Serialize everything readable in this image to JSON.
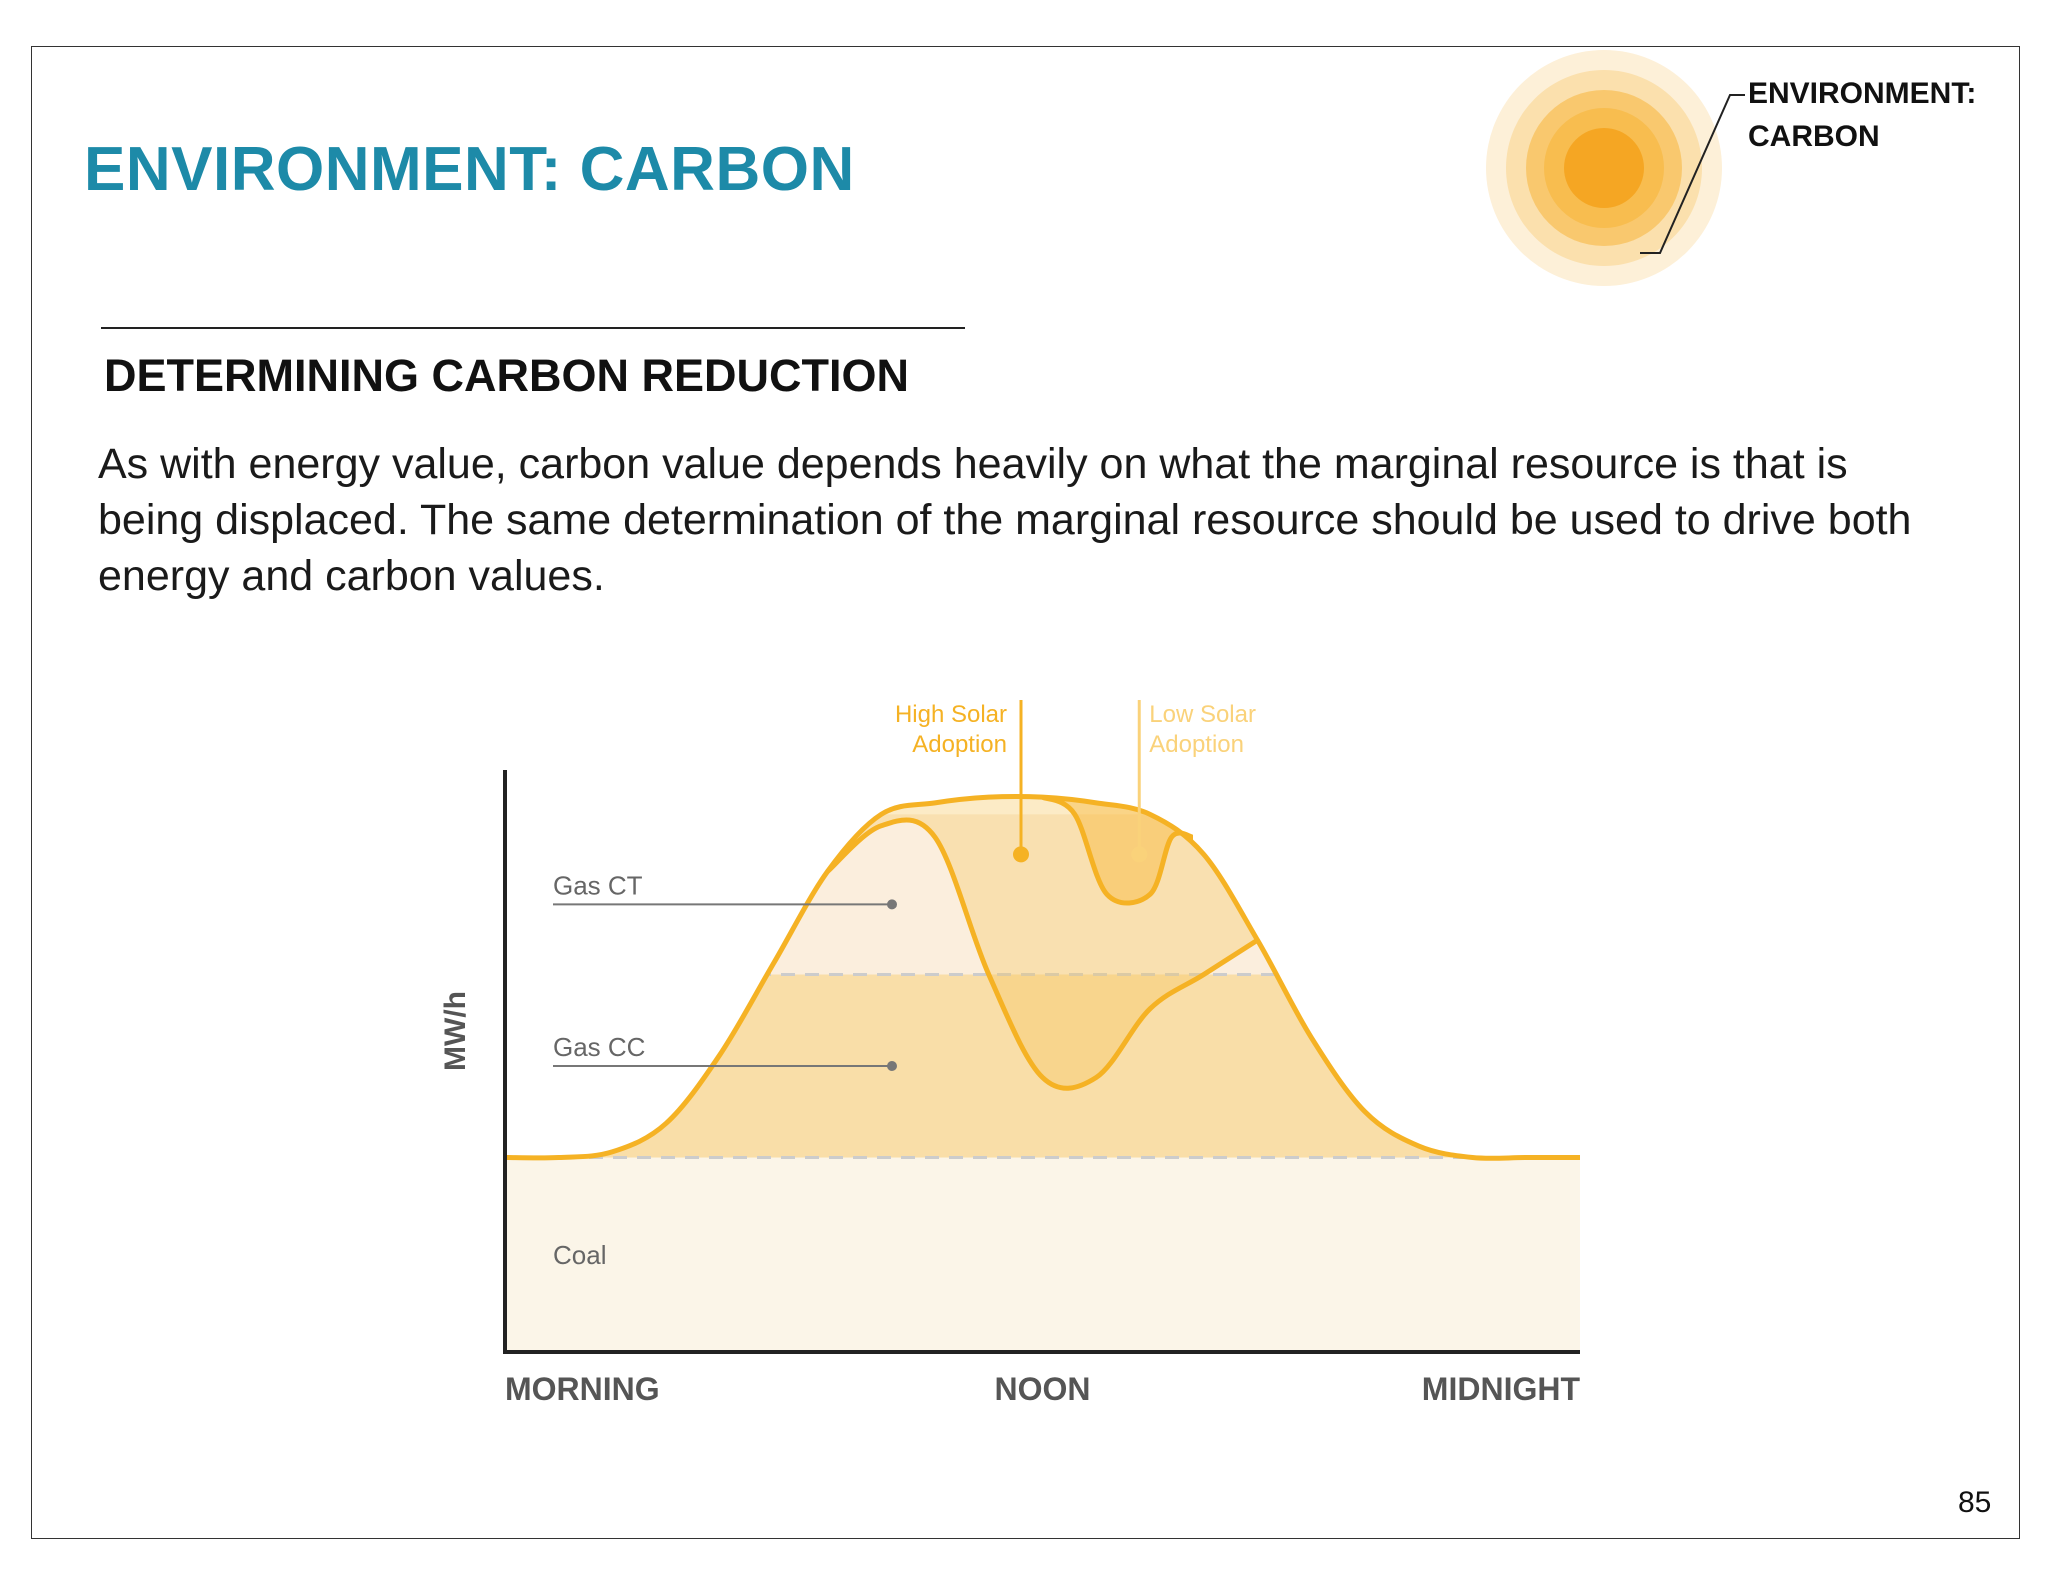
{
  "page": {
    "title": "ENVIRONMENT: CARBON",
    "section_heading": "DETERMINING CARBON REDUCTION",
    "body_text": "As with energy value, carbon value depends heavily on what the marginal resource is that is being displaced. The same determination of the marginal resource should be used to drive both energy and carbon values.",
    "corner_label": {
      "line1": "ENVIRONMENT:",
      "line2": "CARBON"
    },
    "page_number": "85",
    "title_color": "#1d8aa8"
  },
  "chart_data": {
    "type": "area",
    "title": "",
    "xlabel": "",
    "ylabel": "MW/h",
    "x_tick_labels": [
      "MORNING",
      "NOON",
      "MIDNIGHT"
    ],
    "x_tick_positions": [
      0.0,
      0.5,
      1.0
    ],
    "xlim": [
      0,
      1
    ],
    "ylim": [
      0,
      1
    ],
    "grid": false,
    "bands": [
      {
        "name": "Coal",
        "from": 0.0,
        "to": 0.34,
        "color": "#fbf5e8"
      },
      {
        "name": "Gas CC",
        "from": 0.34,
        "to": 0.66,
        "color": "#f9dea8"
      },
      {
        "name": "Gas CT",
        "from": 0.66,
        "to": 0.94,
        "color": "#fbeedd"
      }
    ],
    "series": [
      {
        "name": "",
        "x": [
          0.0,
          0.05,
          0.1,
          0.15,
          0.2,
          0.25,
          0.3,
          0.35,
          0.4,
          0.45,
          0.5,
          0.55,
          0.6,
          0.65,
          0.7,
          0.75,
          0.8,
          0.85,
          0.9,
          0.95,
          1.0
        ],
        "y": [
          0.34,
          0.34,
          0.35,
          0.4,
          0.52,
          0.68,
          0.84,
          0.94,
          0.96,
          0.97,
          0.97,
          0.96,
          0.94,
          0.87,
          0.72,
          0.55,
          0.42,
          0.36,
          0.34,
          0.34,
          0.34
        ]
      },
      {
        "name": "High Solar Adoption",
        "x": [
          0.3,
          0.35,
          0.4,
          0.45,
          0.5,
          0.55,
          0.6,
          0.65,
          0.7
        ],
        "y": [
          0.84,
          0.92,
          0.9,
          0.66,
          0.48,
          0.48,
          0.6,
          0.66,
          0.72
        ]
      },
      {
        "name": "Low Solar Adoption",
        "x": [
          0.5,
          0.53,
          0.56,
          0.6,
          0.62,
          0.64
        ],
        "y": [
          0.97,
          0.94,
          0.8,
          0.8,
          0.9,
          0.9
        ]
      }
    ],
    "annotations": [
      {
        "text": "High Solar Adoption",
        "line1": "High Solar",
        "line2": "Adoption",
        "x": 0.48,
        "y": 0.87
      },
      {
        "text": "Low Solar Adoption",
        "line1": "Low Solar",
        "line2": "Adoption",
        "x": 0.59,
        "y": 0.87
      }
    ],
    "band_labels": [
      "Gas CT",
      "Gas CC",
      "Coal"
    ],
    "colors": {
      "curve": "#f5b224",
      "curve_light": "#fad27a",
      "axis": "#222222",
      "label": "#666666",
      "dash": "#cccccc"
    }
  }
}
